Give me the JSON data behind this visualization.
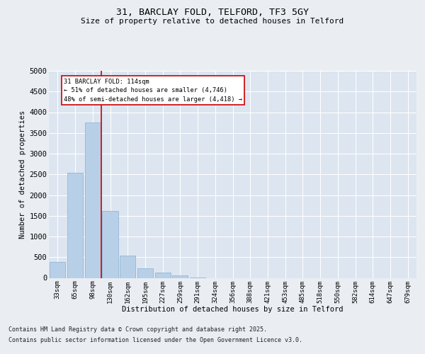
{
  "title1": "31, BARCLAY FOLD, TELFORD, TF3 5GY",
  "title2": "Size of property relative to detached houses in Telford",
  "xlabel": "Distribution of detached houses by size in Telford",
  "ylabel": "Number of detached properties",
  "categories": [
    "33sqm",
    "65sqm",
    "98sqm",
    "130sqm",
    "162sqm",
    "195sqm",
    "227sqm",
    "259sqm",
    "291sqm",
    "324sqm",
    "356sqm",
    "388sqm",
    "421sqm",
    "453sqm",
    "485sqm",
    "518sqm",
    "550sqm",
    "582sqm",
    "614sqm",
    "647sqm",
    "679sqm"
  ],
  "values": [
    390,
    2530,
    3750,
    1620,
    530,
    230,
    130,
    55,
    10,
    0,
    0,
    0,
    0,
    0,
    0,
    0,
    0,
    0,
    0,
    0,
    0
  ],
  "bar_color": "#b8cfe8",
  "bar_edge_color": "#8aafd0",
  "vline_x_index": 2.5,
  "vline_color": "#cc0000",
  "annotation_text": "31 BARCLAY FOLD: 114sqm\n← 51% of detached houses are smaller (4,746)\n48% of semi-detached houses are larger (4,418) →",
  "annotation_box_color": "#cc0000",
  "ylim": [
    0,
    5000
  ],
  "yticks": [
    0,
    500,
    1000,
    1500,
    2000,
    2500,
    3000,
    3500,
    4000,
    4500,
    5000
  ],
  "bg_color": "#eaeef3",
  "plot_bg_color": "#dce5f0",
  "grid_color": "#ffffff",
  "footer1": "Contains HM Land Registry data © Crown copyright and database right 2025.",
  "footer2": "Contains public sector information licensed under the Open Government Licence v3.0."
}
